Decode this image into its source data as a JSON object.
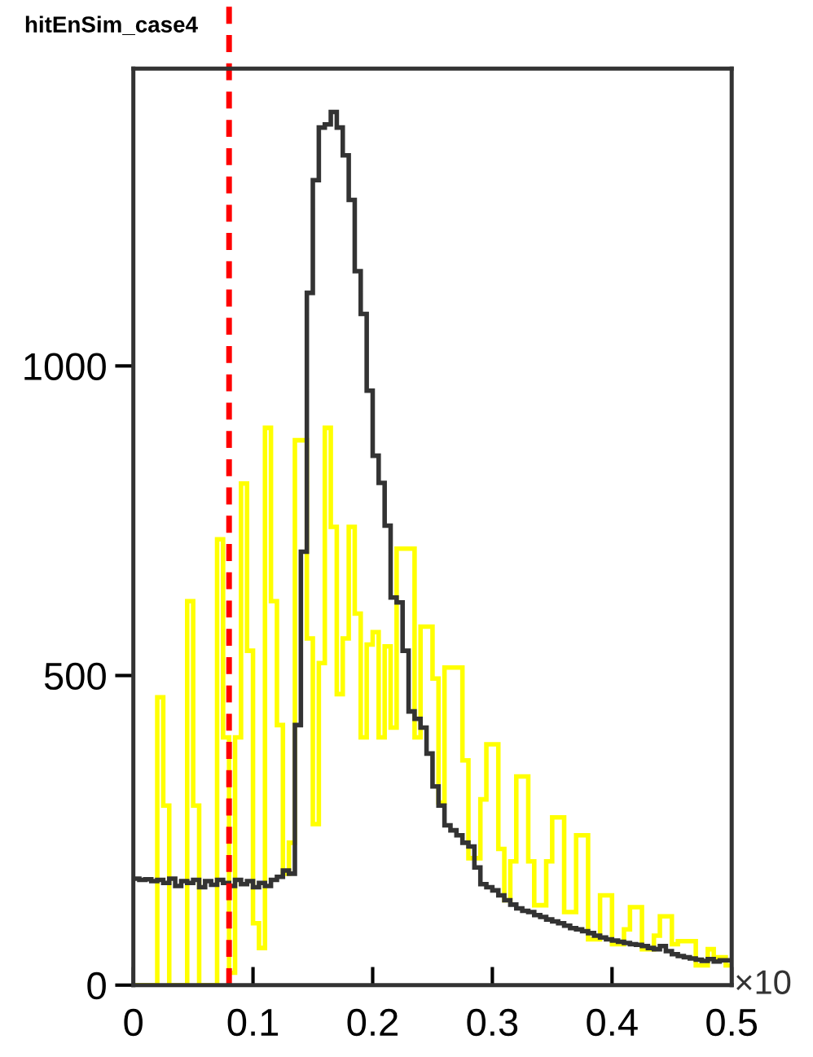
{
  "chart_data": {
    "type": "histogram",
    "title": "hitEnSim_case4",
    "bins": [
      0,
      0.005,
      0.01,
      0.015,
      0.02,
      0.025,
      0.03,
      0.035,
      0.04,
      0.045,
      0.05,
      0.055,
      0.06,
      0.065,
      0.07,
      0.075,
      0.08,
      0.085,
      0.09,
      0.095,
      0.1,
      0.105,
      0.11,
      0.115,
      0.12,
      0.125,
      0.13,
      0.135,
      0.14,
      0.145,
      0.15,
      0.155,
      0.16,
      0.165,
      0.17,
      0.175,
      0.18,
      0.185,
      0.19,
      0.195,
      0.2,
      0.205,
      0.21,
      0.215,
      0.22,
      0.225,
      0.23,
      0.235,
      0.24,
      0.245,
      0.25,
      0.255,
      0.26,
      0.265,
      0.27,
      0.275,
      0.28,
      0.285,
      0.29,
      0.295,
      0.3,
      0.305,
      0.31,
      0.315,
      0.32,
      0.325,
      0.33,
      0.335,
      0.34,
      0.345,
      0.35,
      0.355,
      0.36,
      0.365,
      0.37,
      0.375,
      0.38,
      0.385,
      0.39,
      0.395,
      0.4,
      0.405,
      0.41,
      0.415,
      0.42,
      0.425,
      0.43,
      0.435,
      0.44,
      0.445,
      0.45,
      0.455,
      0.46,
      0.465,
      0.47,
      0.475,
      0.48,
      0.485,
      0.49,
      0.495,
      0.5
    ],
    "series": [
      {
        "color": "#ffff00",
        "values": [
          0,
          0,
          0,
          0,
          465,
          290,
          0,
          0,
          0,
          620,
          290,
          0,
          0,
          0,
          720,
          400,
          20,
          400,
          810,
          540,
          100,
          60,
          900,
          620,
          420,
          180,
          230,
          880,
          880,
          560,
          260,
          520,
          900,
          740,
          470,
          560,
          740,
          600,
          400,
          550,
          570,
          400,
          547,
          416,
          705,
          705,
          705,
          400,
          579,
          579,
          495,
          295,
          513,
          513,
          513,
          363,
          205,
          205,
          300,
          389,
          389,
          220,
          137,
          200,
          337,
          337,
          200,
          129,
          129,
          200,
          271,
          271,
          118,
          118,
          242,
          242,
          74,
          74,
          145,
          145,
          66,
          66,
          90,
          126,
          126,
          58,
          58,
          80,
          111,
          111,
          66,
          71,
          71,
          71,
          32,
          32,
          58,
          45,
          45,
          32
        ]
      },
      {
        "color": "#333333",
        "values": [
          172,
          170,
          171,
          168,
          170,
          165,
          172,
          160,
          168,
          165,
          170,
          158,
          168,
          162,
          170,
          165,
          160,
          170,
          163,
          168,
          158,
          165,
          160,
          170,
          175,
          185,
          180,
          420,
          700,
          1118,
          1300,
          1385,
          1390,
          1410,
          1385,
          1340,
          1268,
          1153,
          1084,
          960,
          855,
          811,
          742,
          626,
          618,
          540,
          442,
          430,
          416,
          374,
          321,
          290,
          258,
          250,
          242,
          230,
          224,
          190,
          163,
          158,
          153,
          145,
          137,
          130,
          124,
          120,
          118,
          113,
          110,
          106,
          103,
          100,
          96,
          92,
          90,
          87,
          84,
          80,
          77,
          74,
          72,
          70,
          68,
          66,
          65,
          63,
          60,
          58,
          63,
          55,
          50,
          47,
          45,
          43,
          41,
          39,
          42,
          38,
          40,
          40
        ]
      }
    ],
    "xlim": [
      0,
      0.5
    ],
    "xticks": [
      0,
      0.1,
      0.2,
      0.3,
      0.4,
      0.5
    ],
    "ylim": [
      0,
      1480
    ],
    "yticks": [
      0,
      500,
      1000
    ],
    "ref_lines": [
      {
        "axis": "x",
        "value": 0.08,
        "color": "#ff0000",
        "line_style": "dashed"
      }
    ],
    "annotations": [
      "×10"
    ],
    "grid": false,
    "legend": false
  }
}
